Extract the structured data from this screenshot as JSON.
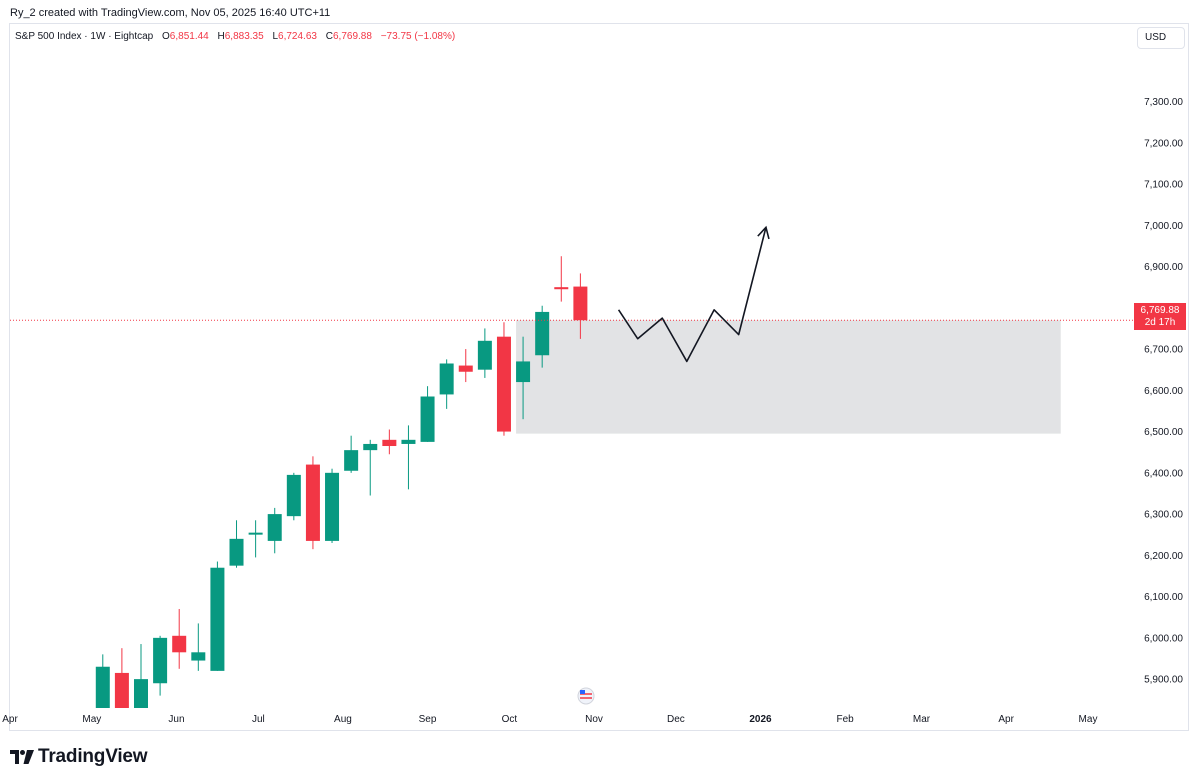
{
  "header": {
    "attribution": "Ry_2 created with TradingView.com, Nov 05, 2025 16:40 UTC+11"
  },
  "legend": {
    "symbol": "S&P 500 Index · 1W · Eightcap",
    "open_label": "O",
    "open": "6,851.44",
    "high_label": "H",
    "high": "6,883.35",
    "low_label": "L",
    "low": "6,724.63",
    "close_label": "C",
    "close": "6,769.88",
    "change": "−73.75 (−1.08%)"
  },
  "currency_button": "USD",
  "price_badge": {
    "price": "6,769.88",
    "countdown": "2d 17h"
  },
  "brand": {
    "name": "TradingView"
  },
  "colors": {
    "up": "#089981",
    "down": "#f23645",
    "zone": "#e2e3e5",
    "projection": "#131722"
  },
  "chart_data": {
    "type": "candlestick",
    "timeframe": "1W",
    "y_axis": {
      "range": [
        5830,
        7420
      ],
      "ticks": [
        5900,
        6000,
        6100,
        6200,
        6300,
        6400,
        6500,
        6600,
        6700,
        6800,
        6900,
        7000,
        7100,
        7200,
        7300
      ],
      "tick_labels": [
        "5,900.00",
        "6,000.00",
        "6,100.00",
        "6,200.00",
        "6,300.00",
        "6,400.00",
        "6,500.00",
        "6,600.00",
        "6,700.00",
        "6,800.00",
        "6,900.00",
        "7,000.00",
        "7,100.00",
        "7,200.00",
        "7,300.00"
      ]
    },
    "x_axis": {
      "labels": [
        {
          "text": "Apr",
          "date": "2025-04-01"
        },
        {
          "text": "May",
          "date": "2025-05-01"
        },
        {
          "text": "Jun",
          "date": "2025-06-01"
        },
        {
          "text": "Jul",
          "date": "2025-07-01"
        },
        {
          "text": "Aug",
          "date": "2025-08-01"
        },
        {
          "text": "Sep",
          "date": "2025-09-01"
        },
        {
          "text": "Oct",
          "date": "2025-10-01"
        },
        {
          "text": "Nov",
          "date": "2025-11-01"
        },
        {
          "text": "Dec",
          "date": "2025-12-01"
        },
        {
          "text": "2026",
          "date": "2026-01-01",
          "bold": true
        },
        {
          "text": "Feb",
          "date": "2026-02-01"
        },
        {
          "text": "Mar",
          "date": "2026-03-01"
        },
        {
          "text": "Apr",
          "date": "2026-04-01"
        },
        {
          "text": "May",
          "date": "2026-05-01"
        }
      ]
    },
    "candles": [
      {
        "date": "2025-05-05",
        "open": 5830,
        "high": 5960,
        "low": 5830,
        "close": 5930
      },
      {
        "date": "2025-05-12",
        "open": 5915,
        "high": 5975,
        "low": 5830,
        "close": 5830
      },
      {
        "date": "2025-05-19",
        "open": 5830,
        "high": 5985,
        "low": 5830,
        "close": 5900
      },
      {
        "date": "2025-05-26",
        "open": 5890,
        "high": 6005,
        "low": 5860,
        "close": 6000
      },
      {
        "date": "2025-06-02",
        "open": 6005,
        "high": 6070,
        "low": 5925,
        "close": 5965
      },
      {
        "date": "2025-06-09",
        "open": 5945,
        "high": 6035,
        "low": 5920,
        "close": 5965
      },
      {
        "date": "2025-06-16",
        "open": 5920,
        "high": 6185,
        "low": 5920,
        "close": 6170
      },
      {
        "date": "2025-06-23",
        "open": 6175,
        "high": 6285,
        "low": 6170,
        "close": 6240
      },
      {
        "date": "2025-06-30",
        "open": 6255,
        "high": 6285,
        "low": 6195,
        "close": 6255
      },
      {
        "date": "2025-07-07",
        "open": 6235,
        "high": 6315,
        "low": 6205,
        "close": 6300
      },
      {
        "date": "2025-07-14",
        "open": 6295,
        "high": 6400,
        "low": 6285,
        "close": 6395
      },
      {
        "date": "2025-07-21",
        "open": 6420,
        "high": 6440,
        "low": 6215,
        "close": 6235
      },
      {
        "date": "2025-07-28",
        "open": 6235,
        "high": 6410,
        "low": 6230,
        "close": 6400
      },
      {
        "date": "2025-08-04",
        "open": 6405,
        "high": 6490,
        "low": 6400,
        "close": 6455
      },
      {
        "date": "2025-08-11",
        "open": 6455,
        "high": 6480,
        "low": 6345,
        "close": 6470
      },
      {
        "date": "2025-08-18",
        "open": 6480,
        "high": 6505,
        "low": 6445,
        "close": 6465
      },
      {
        "date": "2025-08-25",
        "open": 6470,
        "high": 6515,
        "low": 6360,
        "close": 6480
      },
      {
        "date": "2025-09-01",
        "open": 6475,
        "high": 6610,
        "low": 6475,
        "close": 6585
      },
      {
        "date": "2025-09-08",
        "open": 6590,
        "high": 6675,
        "low": 6555,
        "close": 6665
      },
      {
        "date": "2025-09-15",
        "open": 6660,
        "high": 6700,
        "low": 6620,
        "close": 6645
      },
      {
        "date": "2025-09-22",
        "open": 6650,
        "high": 6750,
        "low": 6630,
        "close": 6720
      },
      {
        "date": "2025-09-29",
        "open": 6730,
        "high": 6765,
        "low": 6490,
        "close": 6500
      },
      {
        "date": "2025-10-06",
        "open": 6620,
        "high": 6730,
        "low": 6530,
        "close": 6670
      },
      {
        "date": "2025-10-13",
        "open": 6685,
        "high": 6805,
        "low": 6655,
        "close": 6790
      },
      {
        "date": "2025-10-20",
        "open": 6850,
        "high": 6925,
        "low": 6815,
        "close": 6845
      },
      {
        "date": "2025-10-27",
        "open": 6851.44,
        "high": 6883.35,
        "low": 6724.63,
        "close": 6769.88
      }
    ],
    "last_price": 6769.88,
    "zone": {
      "from_date": "2025-10-06",
      "to_date": "2026-04-21",
      "top": 6769.88,
      "bottom": 6495
    },
    "projection_path": [
      {
        "date": "2025-11-10",
        "price": 6795
      },
      {
        "date": "2025-11-17",
        "price": 6725
      },
      {
        "date": "2025-11-26",
        "price": 6775
      },
      {
        "date": "2025-12-05",
        "price": 6670
      },
      {
        "date": "2025-12-15",
        "price": 6795
      },
      {
        "date": "2025-12-24",
        "price": 6735
      },
      {
        "date": "2026-01-03",
        "price": 6995
      }
    ]
  }
}
